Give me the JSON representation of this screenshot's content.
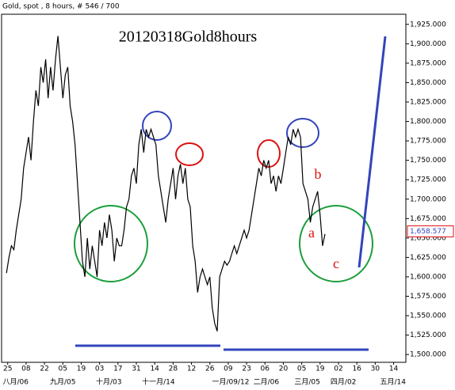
{
  "chart_data": {
    "type": "line",
    "header": "Gold, spot , 8 hours, # 546 / 700",
    "title": "20120318Gold8hours",
    "annotations": [
      "a",
      "b",
      "c"
    ],
    "color": "#000000",
    "x": [
      0,
      4,
      8,
      12,
      16,
      20,
      24,
      28,
      32,
      36,
      40,
      44,
      48,
      52,
      56,
      60,
      64,
      68,
      72,
      76,
      80,
      84,
      88,
      92,
      96,
      100,
      104,
      108,
      112,
      116,
      120,
      124,
      128,
      132,
      136,
      140,
      144,
      148,
      152,
      156,
      160,
      164,
      168,
      172,
      176,
      180,
      184,
      188,
      192,
      196,
      200,
      204,
      208,
      212,
      216,
      220,
      224,
      228,
      232,
      236,
      240,
      244,
      248,
      252,
      256,
      260,
      264,
      268,
      272,
      276,
      280,
      284,
      288,
      292,
      296,
      300,
      304,
      308,
      312,
      316,
      320,
      324,
      328,
      332,
      336,
      340,
      344,
      348,
      352,
      356,
      360,
      364,
      368,
      372,
      376,
      380,
      384,
      388,
      392,
      396,
      400,
      404,
      408,
      412,
      416,
      420,
      424,
      428,
      432,
      436,
      440,
      444,
      448,
      452,
      456,
      460,
      464,
      468,
      472,
      476,
      480,
      484,
      488,
      492,
      496,
      500,
      504,
      508,
      512,
      516,
      520
    ],
    "values": [
      1605,
      1625,
      1640,
      1635,
      1660,
      1680,
      1700,
      1740,
      1760,
      1780,
      1750,
      1800,
      1840,
      1820,
      1870,
      1850,
      1880,
      1830,
      1870,
      1840,
      1880,
      1910,
      1870,
      1830,
      1860,
      1870,
      1820,
      1800,
      1770,
      1720,
      1670,
      1620,
      1600,
      1650,
      1610,
      1640,
      1620,
      1600,
      1660,
      1640,
      1670,
      1650,
      1680,
      1660,
      1620,
      1650,
      1640,
      1640,
      1660,
      1690,
      1700,
      1730,
      1740,
      1720,
      1770,
      1790,
      1760,
      1790,
      1780,
      1790,
      1780,
      1770,
      1730,
      1710,
      1690,
      1670,
      1700,
      1720,
      1740,
      1700,
      1730,
      1745,
      1720,
      1740,
      1700,
      1690,
      1640,
      1620,
      1580,
      1600,
      1610,
      1600,
      1590,
      1600,
      1560,
      1540,
      1530,
      1600,
      1610,
      1620,
      1615,
      1620,
      1630,
      1640,
      1630,
      1640,
      1650,
      1660,
      1650,
      1660,
      1680,
      1700,
      1720,
      1740,
      1730,
      1750,
      1740,
      1750,
      1720,
      1730,
      1710,
      1730,
      1720,
      1740,
      1760,
      1780,
      1770,
      1790,
      1780,
      1790,
      1780,
      1720,
      1710,
      1700,
      1670,
      1690,
      1700,
      1710,
      1680,
      1640,
      1655
    ],
    "last_price": {
      "value": 1658.577,
      "label": "1,658.577"
    },
    "xlim": [
      -8,
      652
    ],
    "xticks": [
      {
        "value": 2,
        "label": "25"
      },
      {
        "value": 32,
        "label": "08"
      },
      {
        "value": 62,
        "label": "22"
      },
      {
        "value": 92,
        "label": "05"
      },
      {
        "value": 122,
        "label": "19"
      },
      {
        "value": 152,
        "label": "03"
      },
      {
        "value": 182,
        "label": "17"
      },
      {
        "value": 212,
        "label": "31"
      },
      {
        "value": 242,
        "label": "14"
      },
      {
        "value": 272,
        "label": "28"
      },
      {
        "value": 302,
        "label": "12"
      },
      {
        "value": 332,
        "label": "26"
      },
      {
        "value": 362,
        "label": "09"
      },
      {
        "value": 392,
        "label": "23"
      },
      {
        "value": 422,
        "label": "06"
      },
      {
        "value": 452,
        "label": "20"
      },
      {
        "value": 482,
        "label": "05"
      },
      {
        "value": 512,
        "label": "19"
      },
      {
        "value": 542,
        "label": "02"
      },
      {
        "value": 572,
        "label": "16"
      },
      {
        "value": 602,
        "label": "30"
      },
      {
        "value": 632,
        "label": "14"
      }
    ],
    "month_labels": [
      {
        "value": 15,
        "label": "八月/06"
      },
      {
        "value": 92,
        "label": "九月/05"
      },
      {
        "value": 167,
        "label": "十月/03"
      },
      {
        "value": 248,
        "label": "十一月/14"
      },
      {
        "value": 366,
        "label": "一月/09/12"
      },
      {
        "value": 424,
        "label": "二月/06"
      },
      {
        "value": 491,
        "label": "三月/05"
      },
      {
        "value": 550,
        "label": "四月/02"
      },
      {
        "value": 631,
        "label": "五月/14"
      }
    ],
    "ylim": [
      1490,
      1938
    ],
    "yticks": [
      {
        "value": 1500,
        "label": "1,500.000"
      },
      {
        "value": 1525,
        "label": "1,525.000"
      },
      {
        "value": 1550,
        "label": "1,550.000"
      },
      {
        "value": 1575,
        "label": "1,575.000"
      },
      {
        "value": 1600,
        "label": "1,600.000"
      },
      {
        "value": 1625,
        "label": "1,625.000"
      },
      {
        "value": 1650,
        "label": "1,650.000"
      },
      {
        "value": 1675,
        "label": "1,675.000"
      },
      {
        "value": 1700,
        "label": "1,700.000"
      },
      {
        "value": 1725,
        "label": "1,725.000"
      },
      {
        "value": 1750,
        "label": "1,750.000"
      },
      {
        "value": 1775,
        "label": "1,775.000"
      },
      {
        "value": 1800,
        "label": "1,800.000"
      },
      {
        "value": 1825,
        "label": "1,825.000"
      },
      {
        "value": 1850,
        "label": "1,850.000"
      },
      {
        "value": 1875,
        "label": "1,875.000"
      },
      {
        "value": 1900,
        "label": "1,900.000"
      },
      {
        "value": 1925,
        "label": "1,925.000"
      }
    ]
  }
}
